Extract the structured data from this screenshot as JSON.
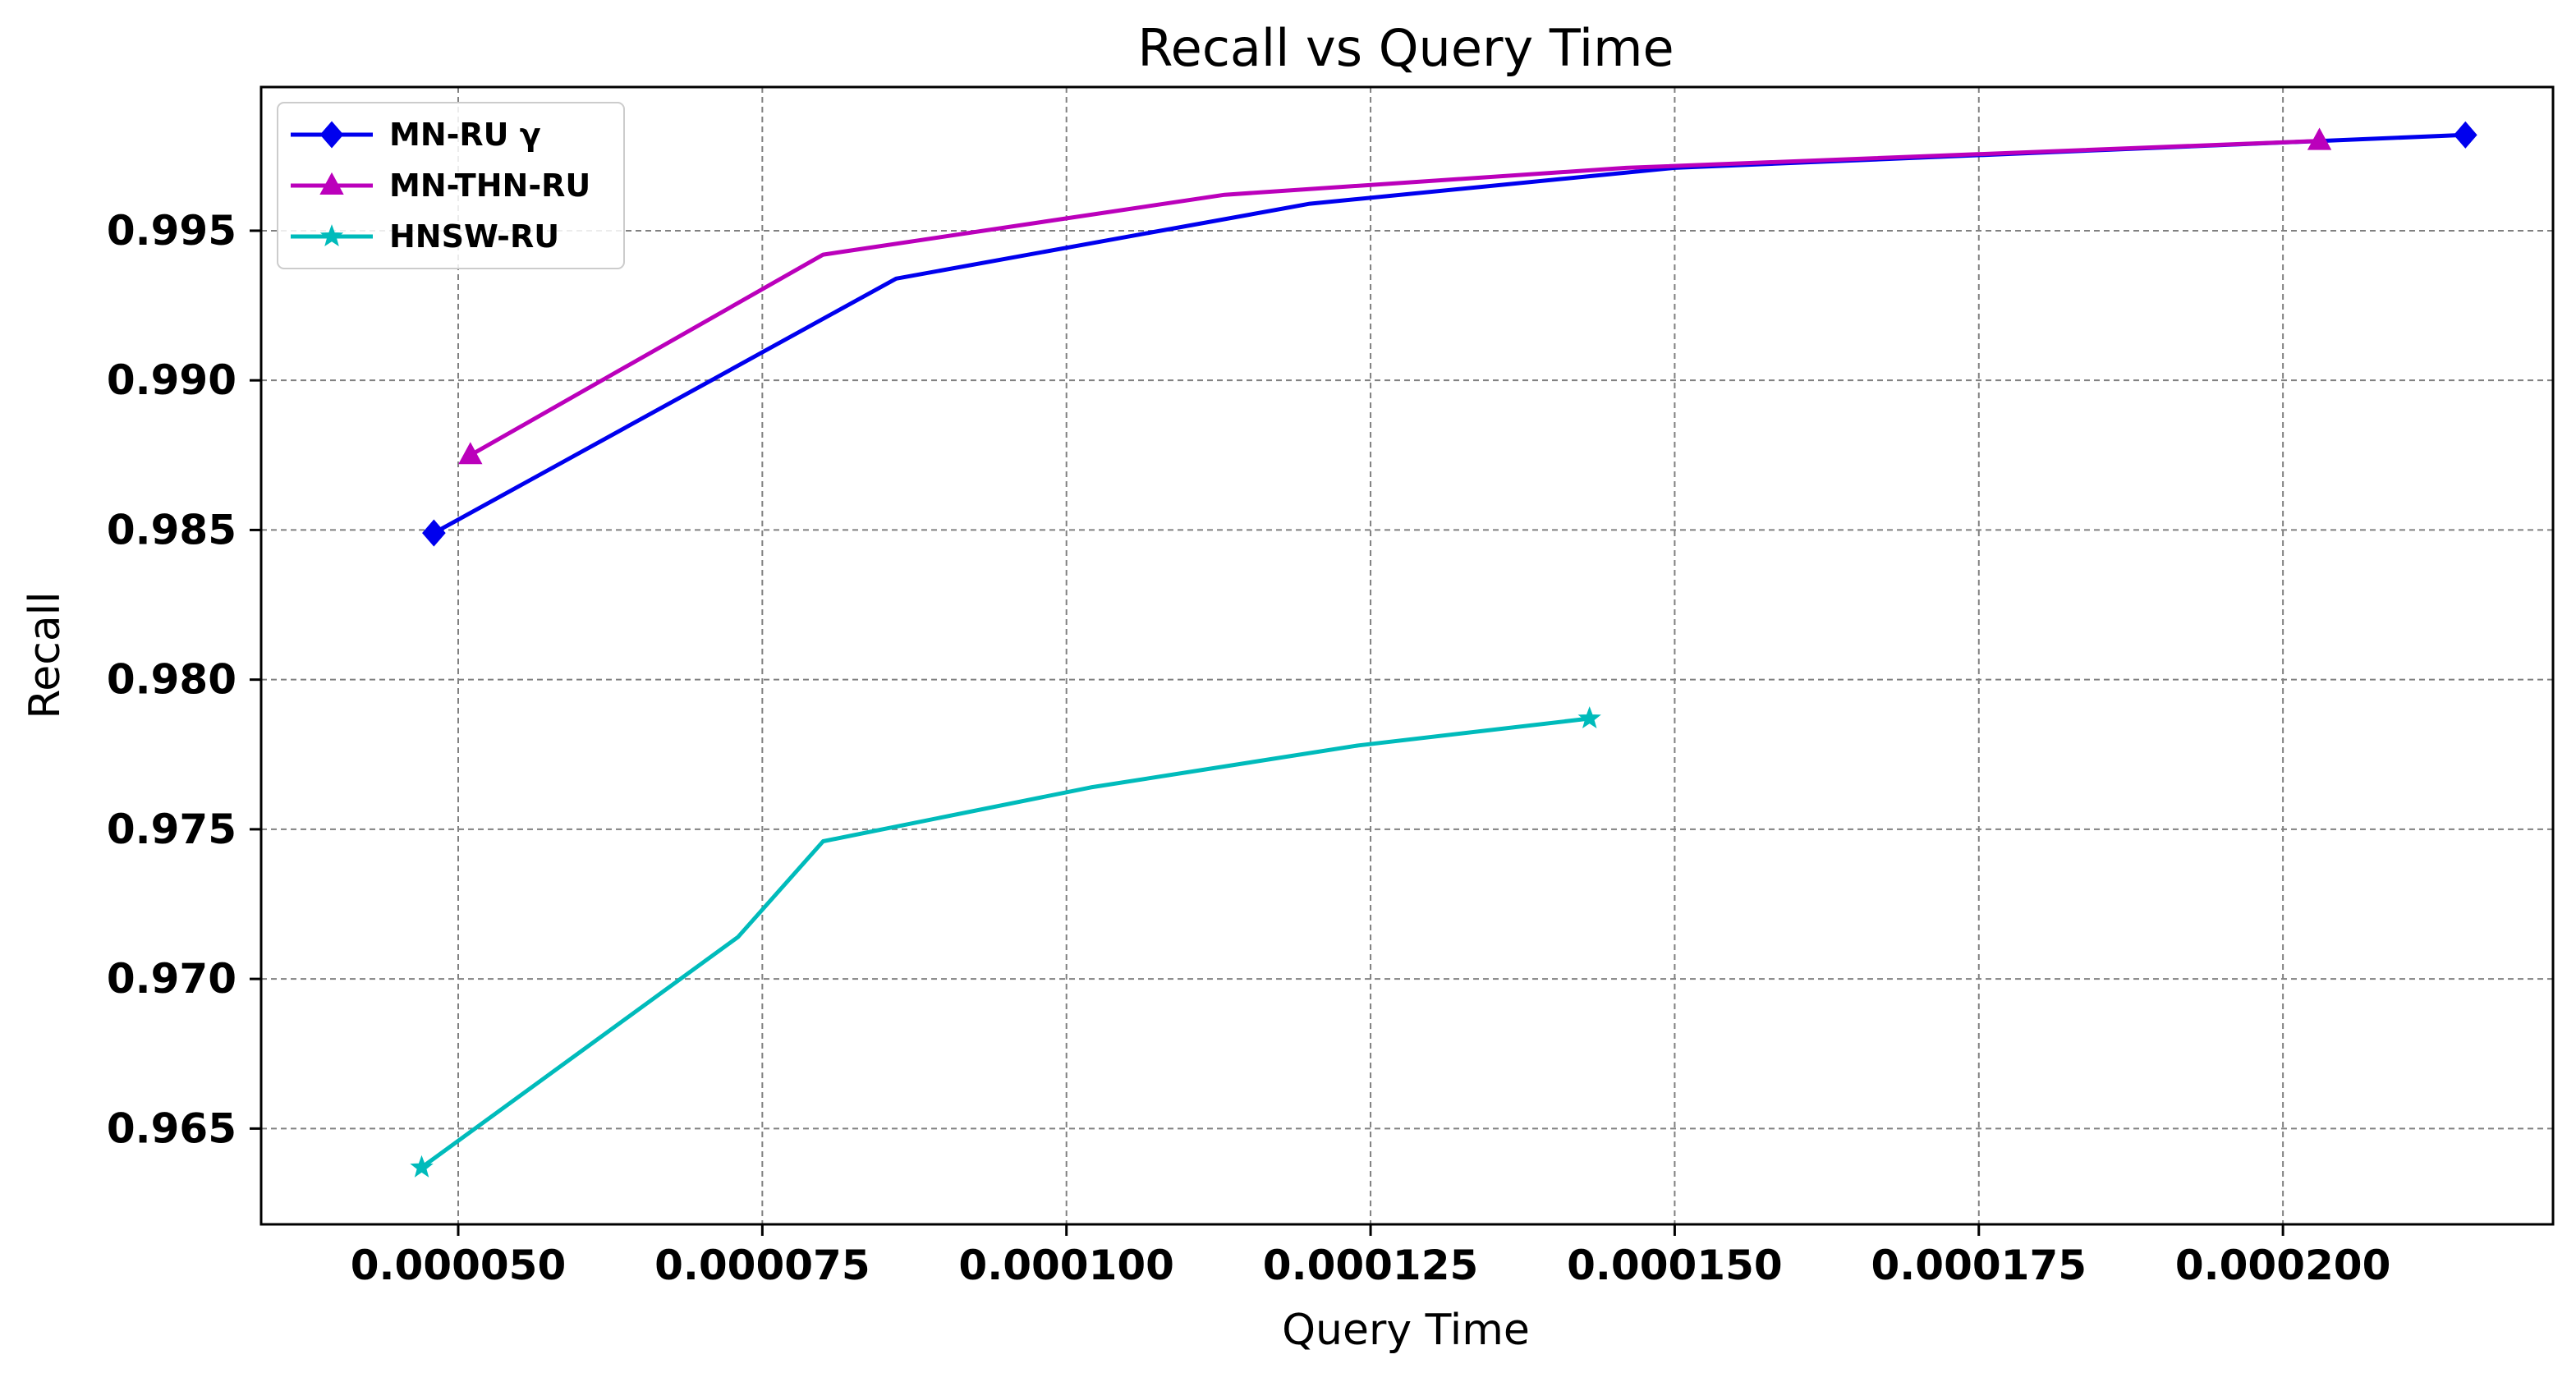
{
  "chart_data": {
    "type": "line",
    "title": "Recall vs Query Time",
    "xlabel": "Query Time",
    "ylabel": "Recall",
    "xlim": [
      3.38e-05,
      0.0002222
    ],
    "ylim": [
      0.9618,
      0.9998
    ],
    "xticks": [
      5e-05,
      7.5e-05,
      0.0001,
      0.000125,
      0.00015,
      0.000175,
      0.0002
    ],
    "xtick_labels": [
      "0.000050",
      "0.000075",
      "0.000100",
      "0.000125",
      "0.000150",
      "0.000175",
      "0.000200"
    ],
    "yticks": [
      0.965,
      0.97,
      0.975,
      0.98,
      0.985,
      0.99,
      0.995
    ],
    "ytick_labels": [
      "0.965",
      "0.970",
      "0.975",
      "0.980",
      "0.985",
      "0.990",
      "0.995"
    ],
    "grid": true,
    "legend_position": "top-left",
    "series": [
      {
        "name": "MN-RU γ",
        "color": "#0000ee",
        "marker": "diamond",
        "x": [
          4.8e-05,
          8.6e-05,
          0.00012,
          0.00015,
          0.000215
        ],
        "y": [
          0.9849,
          0.9934,
          0.9959,
          0.9971,
          0.9982
        ]
      },
      {
        "name": "MN-THN-RU",
        "color": "#bb00bb",
        "marker": "triangle",
        "x": [
          5.1e-05,
          8e-05,
          0.000113,
          0.000146,
          0.000203
        ],
        "y": [
          0.9875,
          0.9942,
          0.9962,
          0.9971,
          0.998
        ]
      },
      {
        "name": "HNSW-RU",
        "color": "#00bbbb",
        "marker": "star",
        "x": [
          4.7e-05,
          7.3e-05,
          8e-05,
          0.000102,
          0.000124,
          0.000143
        ],
        "y": [
          0.9637,
          0.9714,
          0.9746,
          0.9764,
          0.9778,
          0.9787
        ]
      }
    ]
  }
}
